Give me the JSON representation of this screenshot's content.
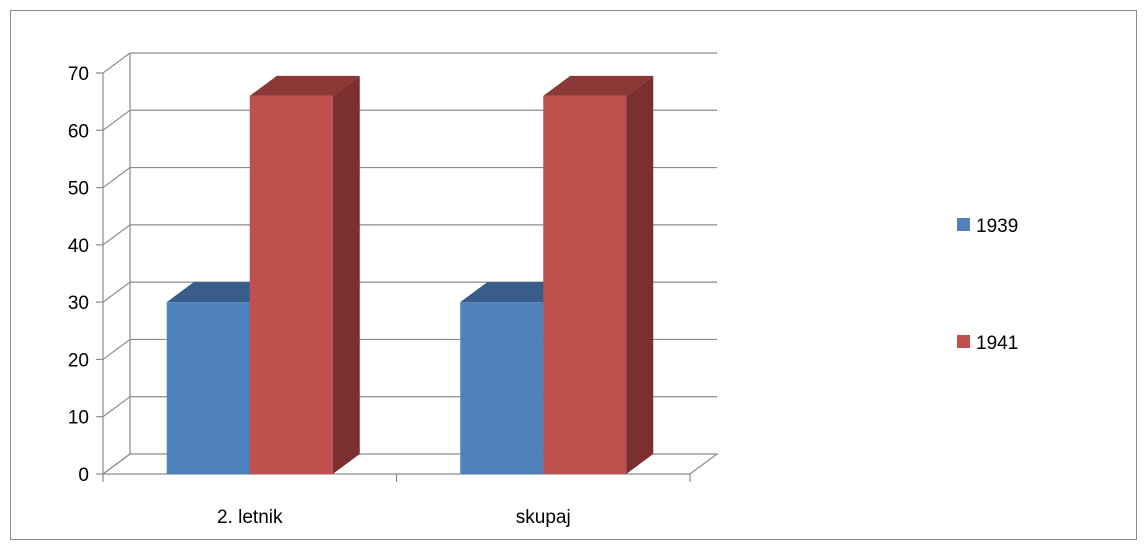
{
  "chart_data": {
    "type": "bar",
    "categories": [
      "2. letnik",
      "skupaj"
    ],
    "series": [
      {
        "name": "1939",
        "values": [
          30,
          30
        ],
        "color": "#4f81bd",
        "top_color": "#385d8a",
        "side_color": "#2c4d75"
      },
      {
        "name": "1941",
        "values": [
          66,
          66
        ],
        "color": "#c0504d",
        "top_color": "#8c3836",
        "side_color": "#7b2f2e"
      }
    ],
    "ylim": [
      0,
      70
    ],
    "yticks": [
      "0",
      "10",
      "20",
      "30",
      "40",
      "50",
      "60",
      "70"
    ],
    "grid": true,
    "legend": "right",
    "title": "",
    "xlabel": "",
    "ylabel": ""
  }
}
